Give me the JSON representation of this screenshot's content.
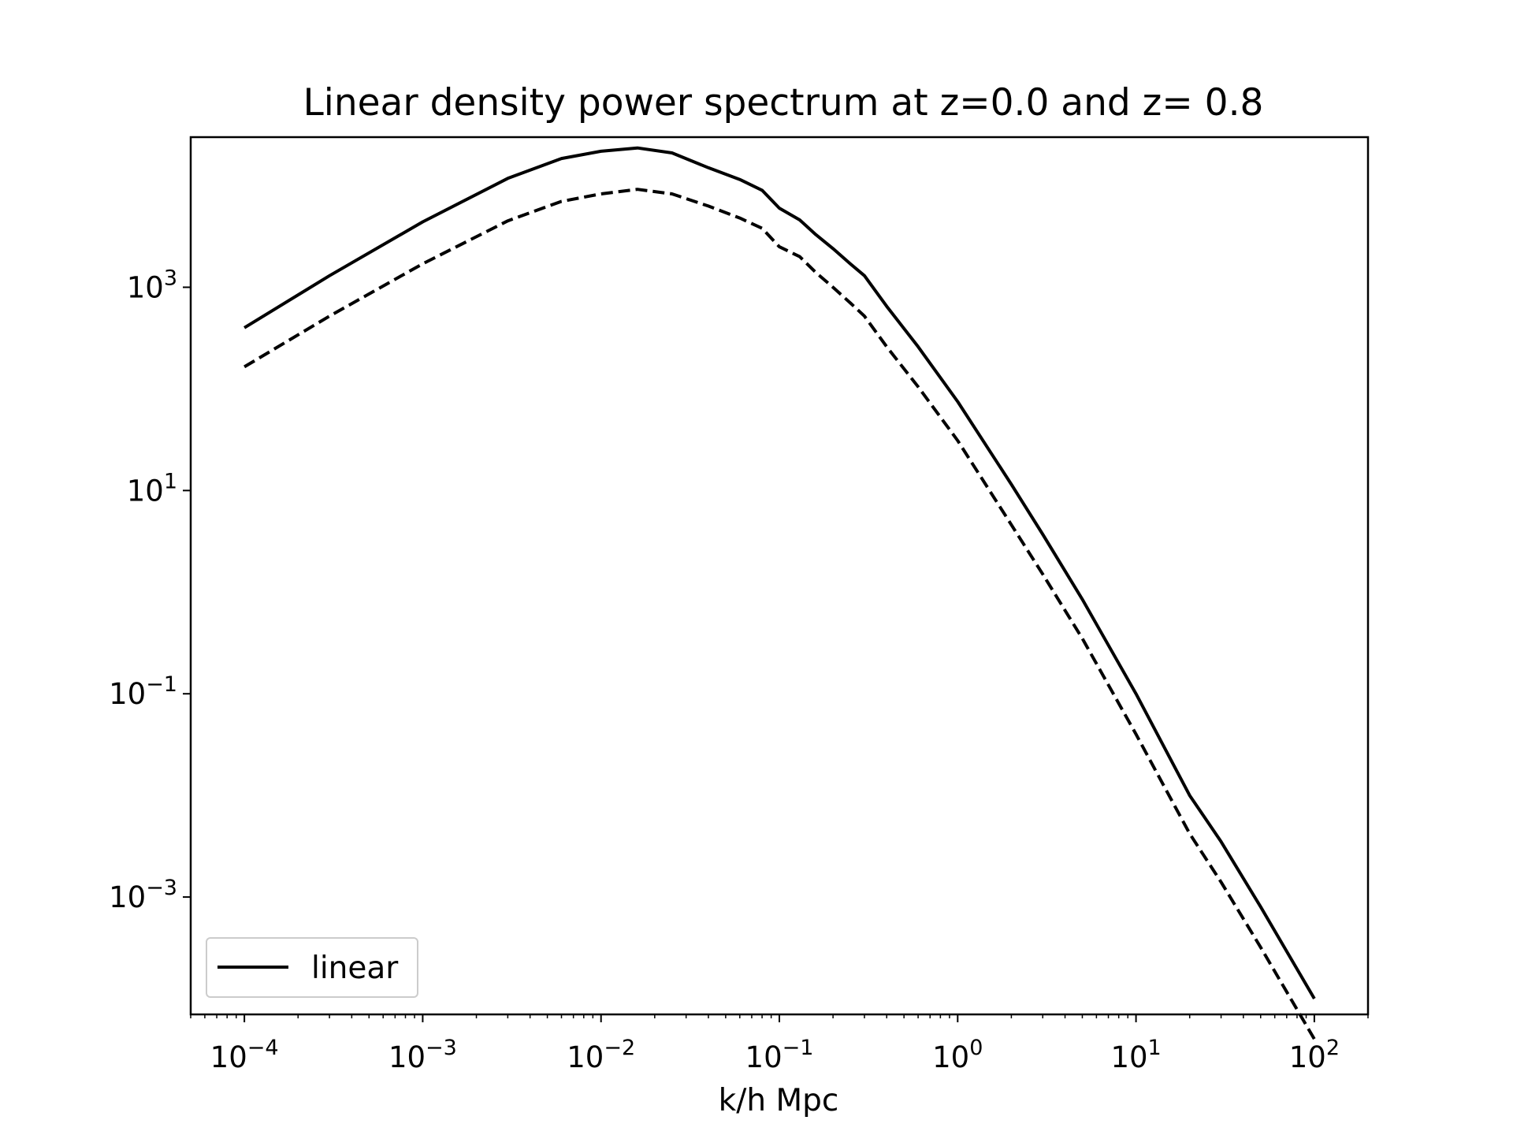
{
  "chart_data": {
    "type": "line",
    "title": "Linear density power spectrum at z=0.0 and z= 0.8",
    "xlabel": "k/h Mpc",
    "ylabel": "",
    "xscale": "log",
    "yscale": "log",
    "xlim": [
      5e-05,
      200
    ],
    "ylim": [
      7e-05,
      30000
    ],
    "grid": false,
    "legend": {
      "position": "lower-left",
      "entries": [
        "linear"
      ]
    },
    "x_ticks": [
      {
        "value": 0.0001,
        "base": "10",
        "exp": "−4"
      },
      {
        "value": 0.001,
        "base": "10",
        "exp": "−3"
      },
      {
        "value": 0.01,
        "base": "10",
        "exp": "−2"
      },
      {
        "value": 0.1,
        "base": "10",
        "exp": "−1"
      },
      {
        "value": 1,
        "base": "10",
        "exp": "0"
      },
      {
        "value": 10,
        "base": "10",
        "exp": "1"
      },
      {
        "value": 100,
        "base": "10",
        "exp": "2"
      }
    ],
    "y_ticks": [
      {
        "value": 1000,
        "base": "10",
        "exp": "3"
      },
      {
        "value": 10,
        "base": "10",
        "exp": "1"
      },
      {
        "value": 0.1,
        "base": "10",
        "exp": "−1"
      },
      {
        "value": 0.001,
        "base": "10",
        "exp": "−3"
      }
    ],
    "x": [
      0.0001,
      0.0003,
      0.001,
      0.003,
      0.006,
      0.01,
      0.016,
      0.025,
      0.04,
      0.06,
      0.08,
      0.1,
      0.13,
      0.16,
      0.2,
      0.25,
      0.3,
      0.4,
      0.6,
      1,
      2,
      3,
      5,
      10,
      20,
      30,
      50,
      100
    ],
    "series": [
      {
        "name": "linear",
        "style": "solid",
        "color": "#000000",
        "values": [
          400,
          1300,
          4400,
          11800,
          18500,
          21800,
          23500,
          21000,
          15000,
          11500,
          9000,
          6000,
          4600,
          3300,
          2400,
          1700,
          1300,
          650,
          260,
          75,
          11.5,
          3.7,
          0.85,
          0.1,
          0.01,
          0.0035,
          0.0008,
          0.0001
        ]
      },
      {
        "name": "",
        "style": "dashed",
        "color": "#000000",
        "values": [
          165,
          520,
          1700,
          4500,
          7000,
          8300,
          9200,
          8300,
          6300,
          4800,
          3800,
          2500,
          2000,
          1400,
          1000,
          700,
          520,
          260,
          105,
          31,
          4.6,
          1.5,
          0.35,
          0.04,
          0.0042,
          0.0014,
          0.00032,
          4e-05
        ]
      }
    ]
  }
}
